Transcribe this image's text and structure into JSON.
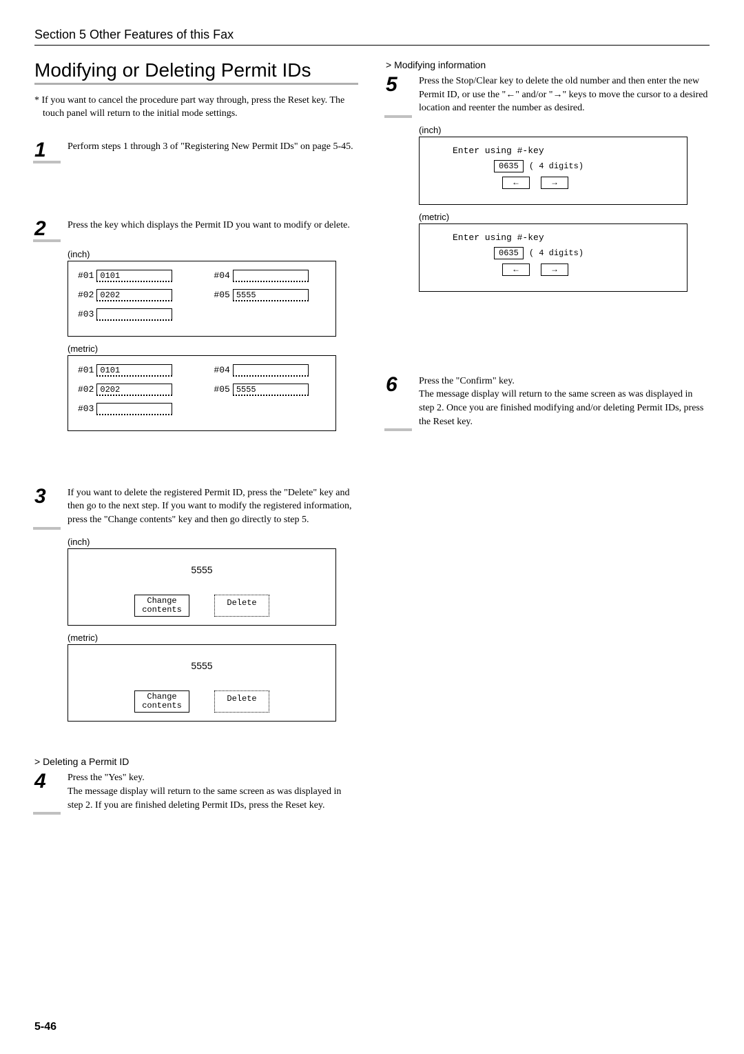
{
  "header": {
    "section": "Section 5   Other Features of this Fax"
  },
  "left": {
    "title": "Modifying or Deleting Permit IDs",
    "note": "* If you want to cancel the procedure part way through, press the Reset key. The touch panel will return to the initial mode settings.",
    "step1": "Perform steps 1 through 3 of \"Registering New Permit IDs\" on page 5-45.",
    "step2": "Press the key which displays the Permit ID you want to modify or delete.",
    "step3": "If you want to delete the registered Permit ID, press the \"Delete\" key and then go to the next step. If you want to modify the registered information, press the \"Change contents\" key and then go directly to step 5.",
    "deleteHead": "> Deleting a Permit ID",
    "step4": "Press the \"Yes\" key.\nThe message display will return to the same screen as was displayed in step 2. If you are finished deleting Permit IDs, press the Reset key.",
    "unit_inch": "(inch)",
    "unit_metric": "(metric)",
    "ids": {
      "c1": [
        "#01",
        "#02",
        "#03"
      ],
      "v1": [
        "0101",
        "0202",
        ""
      ],
      "c2": [
        "#04",
        "#05"
      ],
      "v2": [
        "",
        "5555"
      ]
    },
    "panel3": {
      "value": "5555",
      "btn_change": "Change\ncontents",
      "btn_delete": "Delete"
    }
  },
  "right": {
    "modHead": "> Modifying information",
    "step5": "Press the Stop/Clear key to delete the old number and then enter the new Permit ID, or use the \"←\" and/or \"→\" keys to move the cursor to a desired location and reenter the number as desired.",
    "enter_label": "Enter using #-key",
    "enter_val": "0635",
    "enter_hint": "( 4 digits)",
    "arrow_left": "←",
    "arrow_right": "→",
    "step6": "Press the \"Confirm\" key.\nThe message display will return to the same screen as was displayed in step 2. Once you are finished modifying and/or deleting Permit IDs, press the Reset key."
  },
  "nums": {
    "n1": "1",
    "n2": "2",
    "n3": "3",
    "n4": "4",
    "n5": "5",
    "n6": "6"
  },
  "page": "5-46"
}
